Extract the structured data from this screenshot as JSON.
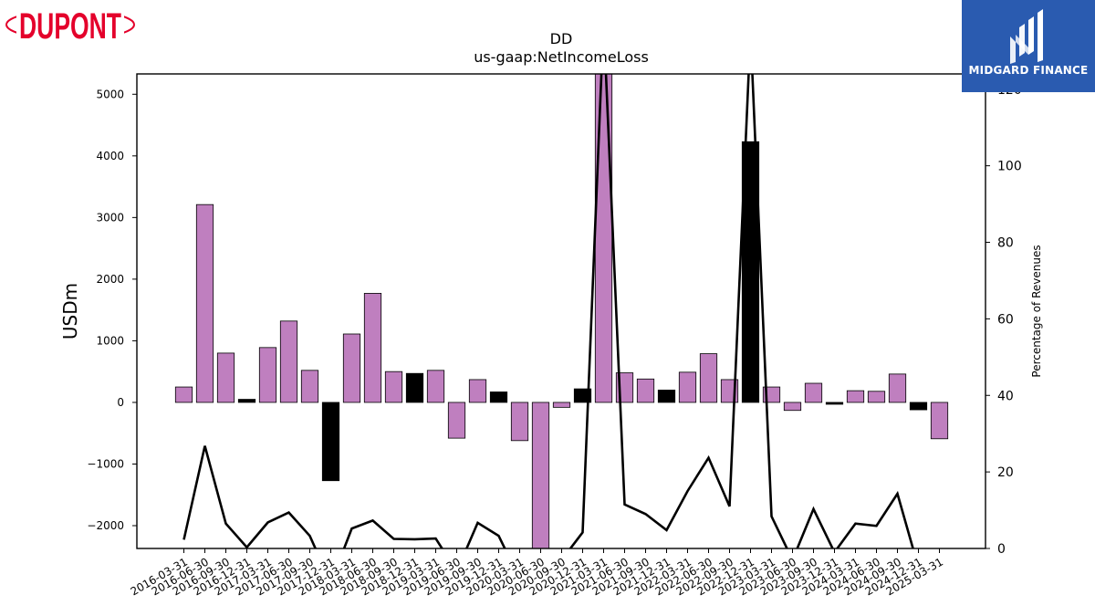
{
  "logos": {
    "left_text": "DUPONT",
    "right_text": "MIDGARD FINANCE"
  },
  "colors": {
    "positive_bar": "#bf7fbf",
    "negative_bar": "#000000",
    "line": "#000000",
    "logo_red": "#e4002b",
    "logo_blue": "#2a5bb0"
  },
  "chart_data": {
    "type": "bar",
    "title": "DD",
    "subtitle": "us-gaap:NetIncomeLoss",
    "ylabel": "USDm",
    "y2label": "Percentage of Revenues",
    "ylim": [
      -2370,
      5330
    ],
    "y2lim": [
      0,
      124
    ],
    "yticks": [
      -2000,
      -1000,
      0,
      1000,
      2000,
      3000,
      4000,
      5000
    ],
    "y2ticks": [
      0,
      20,
      40,
      60,
      80,
      100,
      120
    ],
    "grid": false,
    "categories": [
      "2016-03-31",
      "2016-06-30",
      "2016-09-30",
      "2016-12-31",
      "2017-03-31",
      "2017-06-30",
      "2017-09-30",
      "2017-12-31",
      "2018-03-31",
      "2018-06-30",
      "2018-09-30",
      "2018-12-31",
      "2019-03-31",
      "2019-06-30",
      "2019-09-30",
      "2019-12-31",
      "2020-03-31",
      "2020-06-30",
      "2020-09-30",
      "2020-12-31",
      "2021-03-31",
      "2021-06-30",
      "2021-09-30",
      "2021-12-31",
      "2022-03-31",
      "2022-06-30",
      "2022-09-30",
      "2022-12-31",
      "2023-03-31",
      "2023-06-30",
      "2023-09-30",
      "2023-12-31",
      "2024-03-31",
      "2024-06-30",
      "2024-09-30",
      "2024-12-31",
      "2025-03-31"
    ],
    "series": [
      {
        "kind": "bar",
        "values": [
          250,
          3210,
          800,
          50,
          890,
          1320,
          520,
          -1270,
          1110,
          1770,
          500,
          470,
          520,
          -580,
          370,
          170,
          -620,
          -2900,
          -80,
          220,
          5700,
          480,
          380,
          200,
          490,
          790,
          370,
          4230,
          250,
          -130,
          310,
          -30,
          190,
          180,
          460,
          -120,
          -590
        ],
        "style": [
          "pos",
          "pos",
          "pos",
          "neg",
          "pos",
          "pos",
          "pos",
          "neg",
          "pos",
          "pos",
          "pos",
          "neg",
          "pos",
          "pos",
          "pos",
          "neg",
          "pos",
          "pos",
          "pos",
          "neg",
          "pos",
          "pos",
          "pos",
          "neg",
          "pos",
          "pos",
          "pos",
          "neg",
          "pos",
          "pos",
          "pos",
          "neg",
          "pos",
          "pos",
          "pos",
          "neg",
          "pos"
        ]
      },
      {
        "kind": "line",
        "axis": "right",
        "values": [
          2.3,
          26.8,
          6.5,
          0.3,
          6.8,
          9.4,
          3.3,
          -9,
          5.2,
          7.3,
          2.5,
          2.4,
          2.6,
          -6,
          6.7,
          3.3,
          -8,
          -20,
          -3,
          4.2,
          138,
          11.5,
          9.0,
          4.8,
          15.0,
          23.7,
          11.0,
          135,
          8.4,
          -3,
          10.3,
          -1,
          6.5,
          5.9,
          14.3,
          -5,
          -4
        ]
      }
    ]
  }
}
